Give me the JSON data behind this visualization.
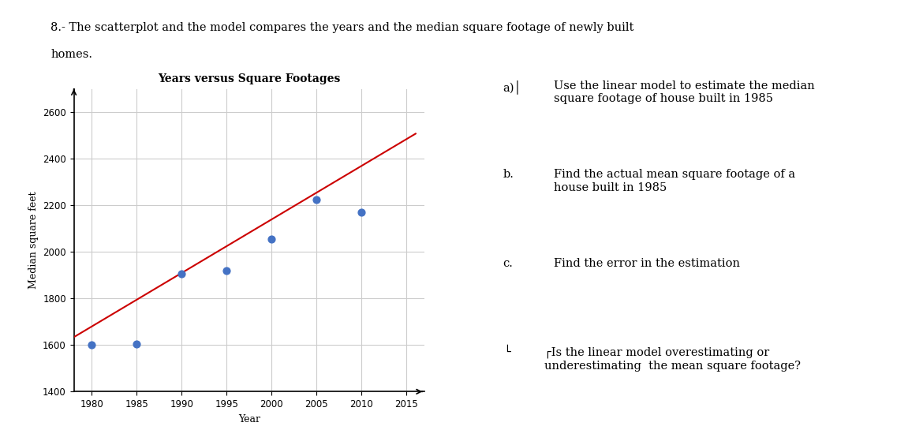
{
  "title": "Years versus Square Footages",
  "xlabel": "Year",
  "ylabel": "Median square feet",
  "scatter_x": [
    1980,
    1985,
    1990,
    1995,
    2000,
    2005,
    2010
  ],
  "scatter_y": [
    1600,
    1605,
    1905,
    1920,
    2055,
    2225,
    2170
  ],
  "line_x": [
    1978,
    2016
  ],
  "line_slope": 23.0,
  "line_intercept": -43860,
  "xlim": [
    1978,
    2017
  ],
  "ylim": [
    1400,
    2700
  ],
  "xticks": [
    1980,
    1985,
    1990,
    1995,
    2000,
    2005,
    2010,
    2015
  ],
  "yticks": [
    1400,
    1600,
    1800,
    2000,
    2200,
    2400,
    2600
  ],
  "dot_color": "#4472c4",
  "line_color": "#cc0000",
  "bg_color": "#ffffff",
  "grid_color": "#cccccc",
  "title_fontsize": 10,
  "axis_fontsize": 9,
  "tick_fontsize": 8.5,
  "problem_text_line1": "8.- The scatterplot and the model compares the years and the median square footage of newly built",
  "problem_text_line2": "homes.",
  "qa_text": [
    [
      "a)│",
      "Use the linear model to estimate the median\nsquare footage of house built in 1985"
    ],
    [
      "b.",
      "Find the actual mean square footage of a\nhouse built in 1985"
    ],
    [
      "c.",
      "Find the error in the estimation"
    ],
    [
      "└",
      "┌Is the linear model overestimating or\nunderestimating  the mean square footage?"
    ]
  ],
  "dot_size": 40
}
